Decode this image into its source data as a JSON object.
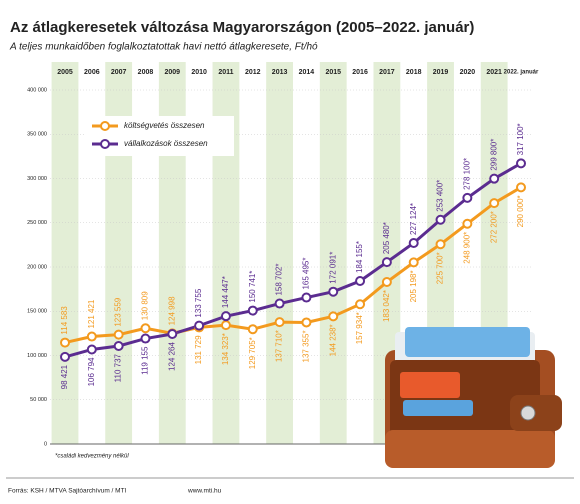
{
  "chart_data": {
    "type": "line",
    "title": "Az átlagkeresetek változása Magyarországon (2005–2022. január)",
    "subtitle": "A teljes munkaidőben foglalkoztatottak havi nettó átlagkeresete, Ft/hó",
    "categories": [
      "2005",
      "2006",
      "2007",
      "2008",
      "2009",
      "2010",
      "2011",
      "2012",
      "2013",
      "2014",
      "2015",
      "2016",
      "2017",
      "2018",
      "2019",
      "2020",
      "2021",
      "2022. január"
    ],
    "series": [
      {
        "name": "költségvetés összesen",
        "color": "#f39a1e",
        "values": [
          114583,
          121421,
          123559,
          130809,
          124998,
          131729,
          134323,
          129705,
          137710,
          137355,
          144238,
          157934,
          183042,
          205198,
          225700,
          248900,
          272200,
          290000
        ],
        "value_labels": [
          "114 583",
          "121 421",
          "123 559",
          "130 809",
          "124 998",
          "131 729",
          "134 323*",
          "129 705*",
          "137 710*",
          "137 355*",
          "144 238*",
          "157 934*",
          "183 042*",
          "205 198*",
          "225 700*",
          "248 900*",
          "272 200*",
          "290 000*"
        ]
      },
      {
        "name": "vállalkozások összesen",
        "color": "#5b2c90",
        "values": [
          98421,
          106794,
          110737,
          119155,
          124264,
          133755,
          144447,
          150741,
          158702,
          165495,
          172091,
          184155,
          205480,
          227124,
          253400,
          278100,
          299800,
          317100
        ],
        "value_labels": [
          "98 421",
          "106 794",
          "110 737",
          "119 155",
          "124 264",
          "133 755",
          "144 447*",
          "150 741*",
          "158 702*",
          "165 495*",
          "172 091*",
          "184 155*",
          "205 480*",
          "227 124*",
          "253 400*",
          "278 100*",
          "299 800*",
          "317 100*"
        ]
      }
    ],
    "ylim": [
      0,
      400000
    ],
    "yticks": [
      0,
      {
        "value": 50000,
        "label": "50 000"
      },
      {
        "value": 100000,
        "label": "100 000"
      },
      {
        "value": 150000,
        "label": "150 000"
      },
      {
        "value": 200000,
        "label": "200 000"
      },
      {
        "value": 250000,
        "label": "250 000"
      },
      {
        "value": 300000,
        "label": "300 000"
      },
      {
        "value": 350000,
        "label": "350 000"
      },
      {
        "value": 400000,
        "label": "400 000"
      }
    ],
    "grid": true,
    "note": "*családi kedvezmény nélkül",
    "source": "Forrás: KSH / MTVA Sajtóarchívum / MTI",
    "website": "www.mti.hu"
  }
}
